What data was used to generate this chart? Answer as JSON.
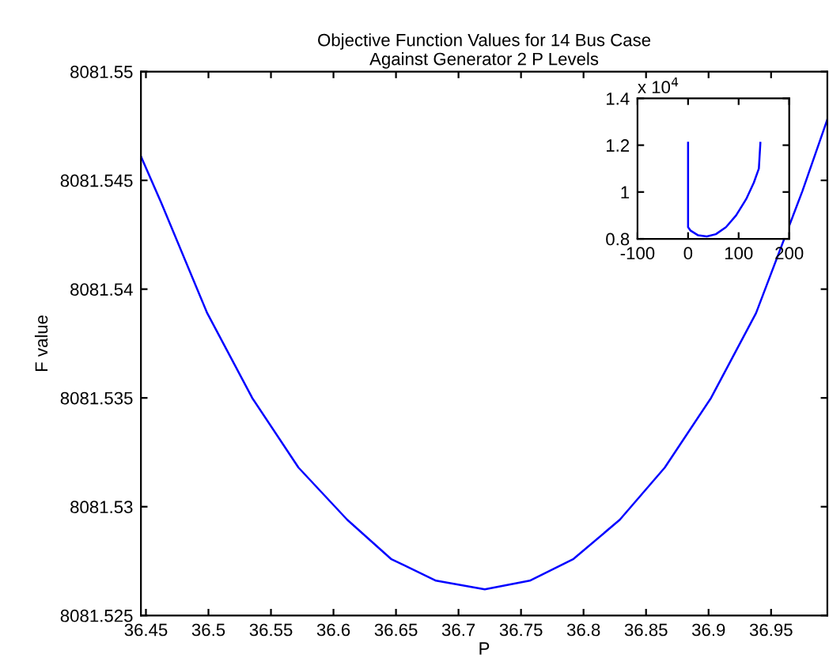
{
  "chart_data": [
    {
      "type": "line",
      "title": "Objective Function Values for 14 Bus Case\nAgainst Generator 2 P Levels",
      "xlabel": "P",
      "ylabel": "F value",
      "series": [
        {
          "color": "#0000ff",
          "x": [
            36.446,
            36.462,
            36.499,
            36.535,
            36.572,
            36.611,
            36.646,
            36.682,
            36.721,
            36.757,
            36.792,
            36.829,
            36.865,
            36.902,
            36.938,
            36.975,
            36.995
          ],
          "values": [
            8081.5461,
            8081.544,
            8081.5389,
            8081.535,
            8081.5318,
            8081.5294,
            8081.5276,
            8081.5266,
            8081.5262,
            8081.5266,
            8081.5276,
            8081.5294,
            8081.5318,
            8081.535,
            8081.5389,
            8081.5445,
            8081.5478
          ]
        }
      ],
      "xlim": [
        36.446,
        36.995
      ],
      "ylim": [
        8081.525,
        8081.55
      ],
      "xticks": [
        36.45,
        36.5,
        36.55,
        36.6,
        36.65,
        36.7,
        36.75,
        36.8,
        36.85,
        36.9,
        36.95
      ],
      "yticks": [
        8081.525,
        8081.53,
        8081.535,
        8081.54,
        8081.545,
        8081.55
      ],
      "grid": false,
      "legend": false
    },
    {
      "type": "line",
      "annotations": [
        "x 10$^{4}$"
      ],
      "series": [
        {
          "color": "#0000ff",
          "x": [
            0,
            0,
            5,
            20,
            37,
            55,
            75,
            95,
            115,
            130,
            140,
            143
          ],
          "values": [
            1.21,
            0.85,
            0.835,
            0.815,
            0.81,
            0.82,
            0.85,
            0.9,
            0.97,
            1.04,
            1.1,
            1.21
          ]
        }
      ],
      "xlim": [
        -100,
        200
      ],
      "ylim": [
        0.8,
        1.4
      ],
      "xticks": [
        -100,
        0,
        100,
        200
      ],
      "yticks": [
        0.8,
        1,
        1.2,
        1.4
      ],
      "grid": false,
      "legend": false
    }
  ]
}
